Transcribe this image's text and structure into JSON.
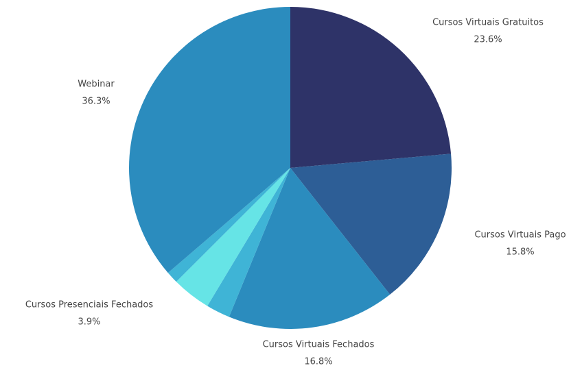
{
  "chart_data": {
    "type": "pie",
    "categories": [
      "Cursos Virtuais Gratuitos",
      "Cursos Virtuais Pago",
      "Cursos Virtuais Fechados",
      null,
      "Cursos Presenciais Fechados",
      null,
      "Webinar"
    ],
    "values": [
      23.6,
      15.8,
      16.8,
      2.4,
      3.9,
      1.2,
      36.3
    ],
    "value_labels": [
      "23.6%",
      "15.8%",
      "16.8%",
      null,
      "3.9%",
      null,
      "36.3%"
    ],
    "colors": [
      "#2e3368",
      "#2d5e96",
      "#2b8cbe",
      "#3fb4d6",
      "#66e4e6",
      "#3fb4d6",
      "#2b8cbe"
    ]
  }
}
